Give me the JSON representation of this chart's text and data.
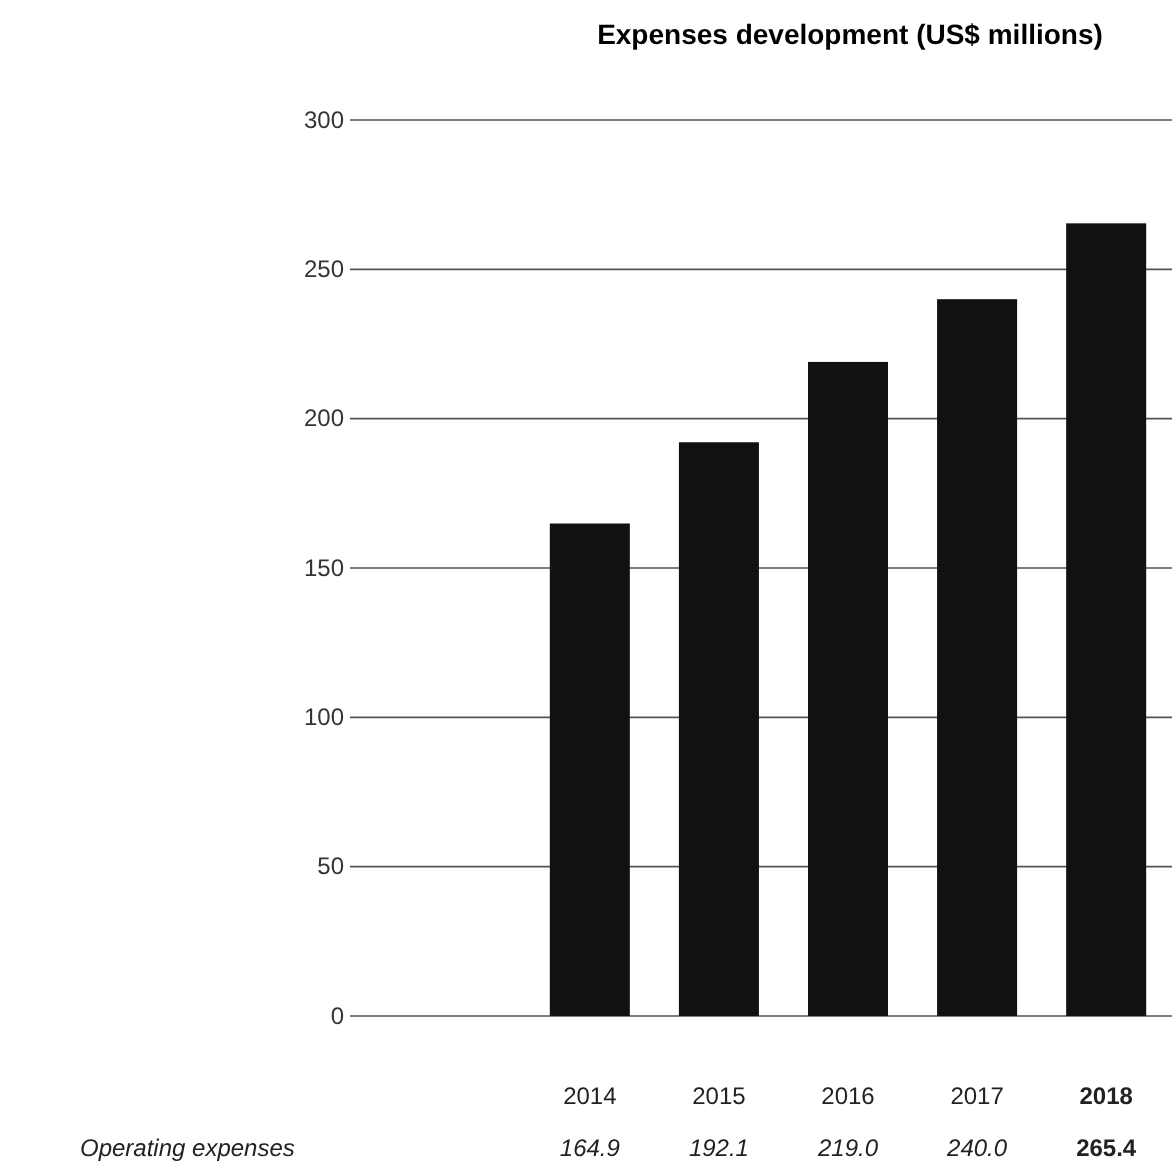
{
  "chart_data": {
    "type": "bar",
    "title": "Expenses development (US$ millions)",
    "categories": [
      "2014",
      "2015",
      "2016",
      "2017",
      "2018"
    ],
    "series": [
      {
        "name": "Operating expenses",
        "color": "#111111",
        "values": [
          164.9,
          192.1,
          219.0,
          240.0,
          265.4
        ],
        "value_labels": [
          "164.9",
          "192.1",
          "219.0",
          "240.0",
          "265.4"
        ]
      }
    ],
    "ylim": [
      0,
      300
    ],
    "yticks": [
      0,
      50,
      100,
      150,
      200,
      250,
      300
    ],
    "grid": "y"
  }
}
